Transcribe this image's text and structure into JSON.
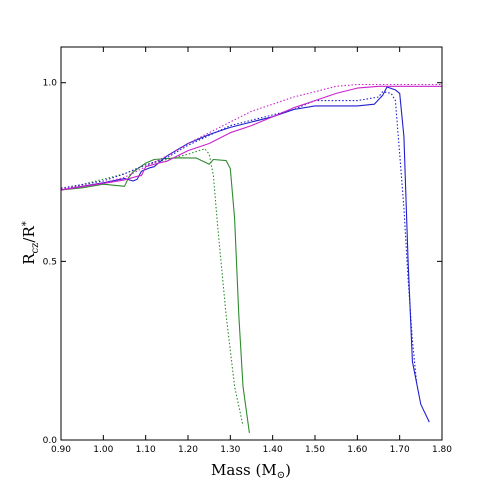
{
  "chart_data": {
    "type": "line",
    "title": "",
    "xlabel": "Mass (M",
    "xlabel_symbol": "⊙",
    "xlabel_close": ")",
    "ylabel_main": "R",
    "ylabel_sub": "cz",
    "ylabel_mid": "/R",
    "ylabel_sup": "*",
    "xlim": [
      0.9,
      1.8
    ],
    "ylim": [
      0.0,
      1.1
    ],
    "xticks": [
      "0.90",
      "1.00",
      "1.10",
      "1.20",
      "1.30",
      "1.40",
      "1.50",
      "1.60",
      "1.70",
      "1.80"
    ],
    "yticks": [
      "0.0",
      "0.5",
      "1.0"
    ],
    "legend": "none",
    "grid": false,
    "series": [
      {
        "color": "#2e8b2e",
        "style": "solid",
        "points": [
          [
            0.9,
            0.7
          ],
          [
            0.95,
            0.706
          ],
          [
            1.0,
            0.716
          ],
          [
            1.05,
            0.71
          ],
          [
            1.06,
            0.735
          ],
          [
            1.07,
            0.75
          ],
          [
            1.1,
            0.775
          ],
          [
            1.12,
            0.785
          ],
          [
            1.15,
            0.788
          ],
          [
            1.18,
            0.79
          ],
          [
            1.22,
            0.789
          ],
          [
            1.25,
            0.772
          ],
          [
            1.26,
            0.785
          ],
          [
            1.29,
            0.782
          ],
          [
            1.3,
            0.76
          ],
          [
            1.31,
            0.62
          ],
          [
            1.32,
            0.35
          ],
          [
            1.33,
            0.15
          ],
          [
            1.345,
            0.02
          ]
        ]
      },
      {
        "color": "#2e8b2e",
        "style": "dotted",
        "points": [
          [
            0.9,
            0.7
          ],
          [
            1.0,
            0.73
          ],
          [
            1.05,
            0.745
          ],
          [
            1.1,
            0.77
          ],
          [
            1.15,
            0.785
          ],
          [
            1.2,
            0.8
          ],
          [
            1.24,
            0.815
          ],
          [
            1.25,
            0.8
          ],
          [
            1.26,
            0.74
          ],
          [
            1.27,
            0.6
          ],
          [
            1.29,
            0.35
          ],
          [
            1.31,
            0.15
          ],
          [
            1.33,
            0.04
          ]
        ]
      },
      {
        "color": "#1f1fcf",
        "style": "solid",
        "points": [
          [
            0.9,
            0.7
          ],
          [
            1.0,
            0.72
          ],
          [
            1.05,
            0.732
          ],
          [
            1.07,
            0.725
          ],
          [
            1.08,
            0.73
          ],
          [
            1.09,
            0.752
          ],
          [
            1.11,
            0.762
          ],
          [
            1.12,
            0.765
          ],
          [
            1.15,
            0.795
          ],
          [
            1.2,
            0.83
          ],
          [
            1.25,
            0.855
          ],
          [
            1.3,
            0.875
          ],
          [
            1.35,
            0.89
          ],
          [
            1.4,
            0.905
          ],
          [
            1.45,
            0.925
          ],
          [
            1.5,
            0.935
          ],
          [
            1.55,
            0.935
          ],
          [
            1.6,
            0.935
          ],
          [
            1.64,
            0.94
          ],
          [
            1.66,
            0.965
          ],
          [
            1.67,
            0.988
          ],
          [
            1.69,
            0.98
          ],
          [
            1.7,
            0.97
          ],
          [
            1.71,
            0.85
          ],
          [
            1.72,
            0.5
          ],
          [
            1.73,
            0.22
          ],
          [
            1.75,
            0.1
          ],
          [
            1.77,
            0.05
          ]
        ]
      },
      {
        "color": "#1f1fcf",
        "style": "dotted",
        "points": [
          [
            0.9,
            0.705
          ],
          [
            1.0,
            0.725
          ],
          [
            1.05,
            0.745
          ],
          [
            1.1,
            0.77
          ],
          [
            1.15,
            0.79
          ],
          [
            1.2,
            0.825
          ],
          [
            1.3,
            0.88
          ],
          [
            1.4,
            0.91
          ],
          [
            1.45,
            0.925
          ],
          [
            1.5,
            0.95
          ],
          [
            1.6,
            0.95
          ],
          [
            1.65,
            0.96
          ],
          [
            1.66,
            0.975
          ],
          [
            1.68,
            0.97
          ],
          [
            1.69,
            0.95
          ],
          [
            1.7,
            0.8
          ],
          [
            1.71,
            0.65
          ],
          [
            1.72,
            0.45
          ],
          [
            1.73,
            0.28
          ],
          [
            1.74,
            0.16
          ]
        ]
      },
      {
        "color": "#cc22cc",
        "style": "solid",
        "points": [
          [
            0.9,
            0.7
          ],
          [
            1.0,
            0.718
          ],
          [
            1.05,
            0.728
          ],
          [
            1.08,
            0.738
          ],
          [
            1.09,
            0.74
          ],
          [
            1.1,
            0.765
          ],
          [
            1.13,
            0.775
          ],
          [
            1.15,
            0.78
          ],
          [
            1.2,
            0.81
          ],
          [
            1.25,
            0.83
          ],
          [
            1.3,
            0.86
          ],
          [
            1.35,
            0.88
          ],
          [
            1.4,
            0.905
          ],
          [
            1.45,
            0.93
          ],
          [
            1.5,
            0.95
          ],
          [
            1.55,
            0.97
          ],
          [
            1.6,
            0.985
          ],
          [
            1.65,
            0.99
          ],
          [
            1.7,
            0.99
          ],
          [
            1.75,
            0.99
          ],
          [
            1.8,
            0.99
          ]
        ]
      },
      {
        "color": "#cc22cc",
        "style": "dotted",
        "points": [
          [
            0.9,
            0.703
          ],
          [
            1.0,
            0.72
          ],
          [
            1.05,
            0.735
          ],
          [
            1.1,
            0.765
          ],
          [
            1.15,
            0.795
          ],
          [
            1.2,
            0.83
          ],
          [
            1.25,
            0.86
          ],
          [
            1.3,
            0.89
          ],
          [
            1.35,
            0.92
          ],
          [
            1.4,
            0.94
          ],
          [
            1.45,
            0.96
          ],
          [
            1.5,
            0.975
          ],
          [
            1.55,
            0.99
          ],
          [
            1.6,
            0.995
          ],
          [
            1.7,
            0.995
          ],
          [
            1.8,
            0.995
          ]
        ]
      }
    ]
  }
}
